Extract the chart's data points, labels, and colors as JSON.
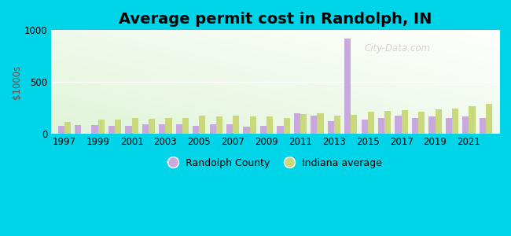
{
  "title": "Average permit cost in Randolph, IN",
  "ylabel": "$1000s",
  "years": [
    1997,
    1998,
    1999,
    2000,
    2001,
    2002,
    2003,
    2004,
    2005,
    2006,
    2007,
    2008,
    2009,
    2010,
    2011,
    2012,
    2013,
    2014,
    2015,
    2016,
    2017,
    2018,
    2019,
    2020,
    2021,
    2022
  ],
  "randolph": [
    75,
    85,
    85,
    80,
    80,
    95,
    90,
    95,
    80,
    95,
    90,
    70,
    80,
    80,
    200,
    175,
    120,
    920,
    135,
    150,
    175,
    155,
    170,
    155,
    165,
    155
  ],
  "indiana": [
    115,
    0,
    135,
    140,
    155,
    145,
    155,
    150,
    175,
    165,
    175,
    170,
    165,
    155,
    190,
    200,
    175,
    185,
    215,
    225,
    230,
    215,
    240,
    245,
    270,
    290
  ],
  "randolph_color": "#c9a8e0",
  "indiana_color": "#c8d87a",
  "bg_outer": "#00d4e8",
  "ylim": [
    0,
    1000
  ],
  "yticks": [
    0,
    500,
    1000
  ],
  "xtick_years": [
    1997,
    1999,
    2001,
    2003,
    2005,
    2007,
    2009,
    2011,
    2013,
    2015,
    2017,
    2019,
    2021
  ],
  "bar_width": 0.38,
  "title_fontsize": 14,
  "axis_fontsize": 8.5,
  "legend_fontsize": 9
}
